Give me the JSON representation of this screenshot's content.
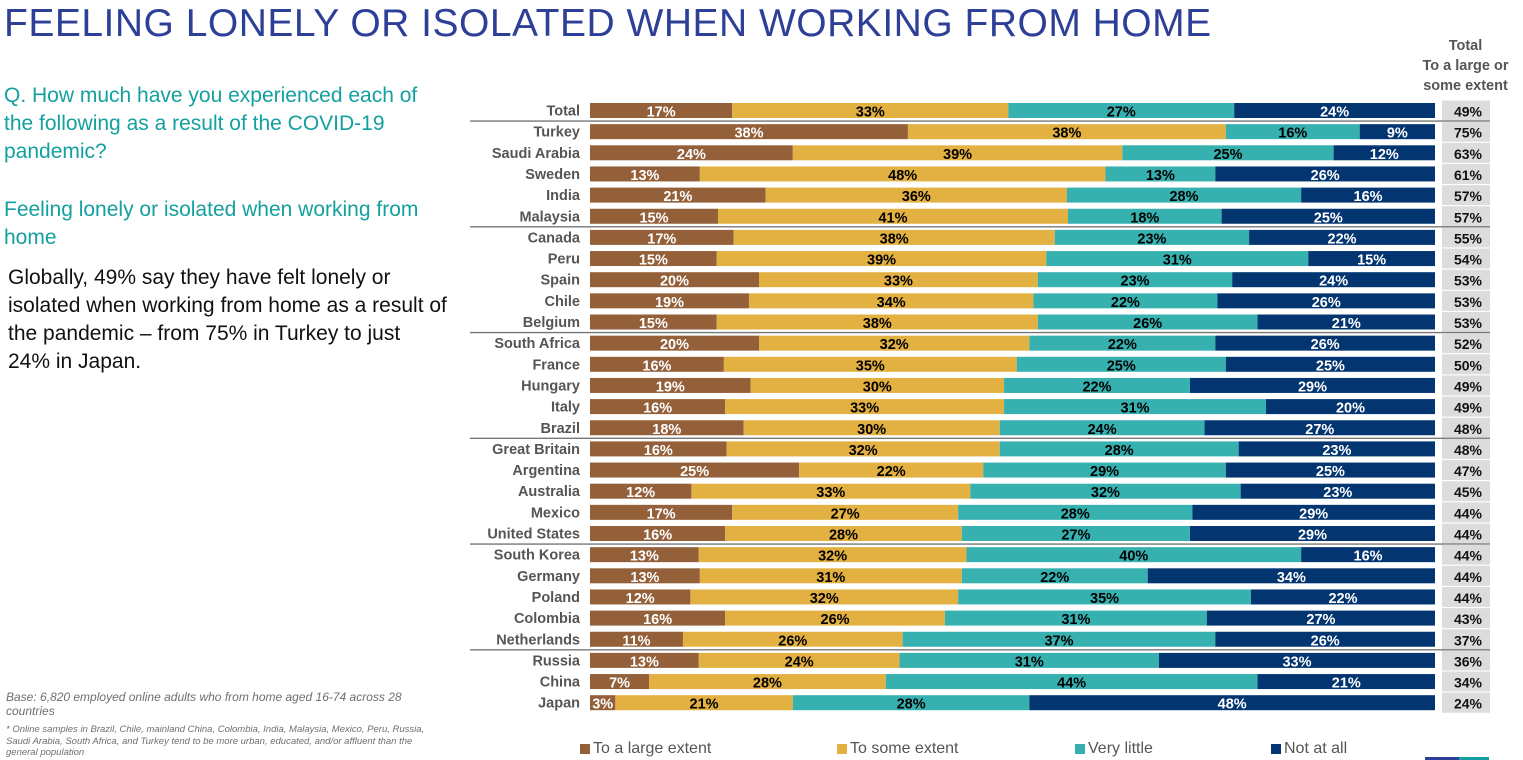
{
  "header": {
    "title": "FEELING LONELY OR ISOLATED WHEN WORKING FROM HOME"
  },
  "left_panel": {
    "question": "Q. How much have you experienced each of the following as a result of the COVID-19 pandemic?",
    "sub_question": "Feeling lonely or isolated when working from home",
    "summary": "Globally, 49% say they have felt lonely or isolated when working from home as a result of the pandemic – from 75% in Turkey to just 24% in Japan.",
    "base_note": "Base: 6,820 employed online adults who from home aged 16-74 across 28 countries",
    "footnote": "* Online samples in Brazil, Chile, mainland China, Colombia, India, Malaysia, Mexico, Peru, Russia, Saudi Arabia, South Africa, and Turkey tend to be more urban, educated, and/or affluent than the general population"
  },
  "total_column": {
    "header": "Total To a large or some extent",
    "header_lines": [
      "Total",
      "To a large or",
      "some extent"
    ]
  },
  "colors": {
    "large": "#93603a",
    "some": "#e3b042",
    "little": "#36b1b0",
    "none": "#033571",
    "title": "#2e3f98",
    "accent_teal": "#14a0a0",
    "total_cell_bg": "#dcdcdc"
  },
  "chart_data": {
    "type": "bar",
    "orientation": "horizontal",
    "stacked": true,
    "title": "FEELING LONELY OR ISOLATED WHEN WORKING FROM HOME",
    "xlabel": "",
    "ylabel": "",
    "xlim": [
      0,
      100
    ],
    "value_unit": "%",
    "legend_position": "bottom",
    "legend": [
      "To a large extent",
      "To some extent",
      "Very little",
      "Not at all"
    ],
    "categories": [
      "Total",
      "Turkey",
      "Saudi Arabia",
      "Sweden",
      "India",
      "Malaysia",
      "Canada",
      "Peru",
      "Spain",
      "Chile",
      "Belgium",
      "South Africa",
      "France",
      "Hungary",
      "Italy",
      "Brazil",
      "Great Britain",
      "Argentina",
      "Australia",
      "Mexico",
      "United States",
      "South Korea",
      "Germany",
      "Poland",
      "Colombia",
      "Netherlands",
      "Russia",
      "China",
      "Japan"
    ],
    "series": [
      {
        "name": "To a large extent",
        "color_key": "large",
        "label_color": "#ffffff",
        "values": [
          17,
          38,
          24,
          13,
          21,
          15,
          17,
          15,
          20,
          19,
          15,
          20,
          16,
          19,
          16,
          18,
          16,
          25,
          12,
          17,
          16,
          13,
          13,
          12,
          16,
          11,
          13,
          7,
          3
        ]
      },
      {
        "name": "To some extent",
        "color_key": "some",
        "label_color": "#000000",
        "values": [
          33,
          38,
          39,
          48,
          36,
          41,
          38,
          39,
          33,
          34,
          38,
          32,
          35,
          30,
          33,
          30,
          32,
          22,
          33,
          27,
          28,
          32,
          31,
          32,
          26,
          26,
          24,
          28,
          21
        ]
      },
      {
        "name": "Very little",
        "color_key": "little",
        "label_color": "#000000",
        "values": [
          27,
          16,
          25,
          13,
          28,
          18,
          23,
          31,
          23,
          22,
          26,
          22,
          25,
          22,
          31,
          24,
          28,
          29,
          32,
          28,
          27,
          40,
          22,
          35,
          31,
          37,
          31,
          44,
          28
        ]
      },
      {
        "name": "Not at all",
        "color_key": "none",
        "label_color": "#ffffff",
        "values": [
          24,
          9,
          12,
          26,
          16,
          25,
          22,
          15,
          24,
          26,
          21,
          26,
          25,
          29,
          20,
          27,
          23,
          25,
          23,
          29,
          29,
          16,
          34,
          22,
          27,
          26,
          33,
          21,
          48
        ]
      }
    ],
    "totals": {
      "name": "Total To a large or some extent",
      "values": [
        49,
        75,
        63,
        61,
        57,
        57,
        55,
        54,
        53,
        53,
        53,
        52,
        50,
        49,
        49,
        48,
        48,
        47,
        45,
        44,
        44,
        44,
        44,
        44,
        43,
        37,
        36,
        34,
        24
      ]
    },
    "group_separators_after": [
      "Total",
      "Malaysia",
      "Belgium",
      "Brazil",
      "United States",
      "Netherlands"
    ]
  }
}
